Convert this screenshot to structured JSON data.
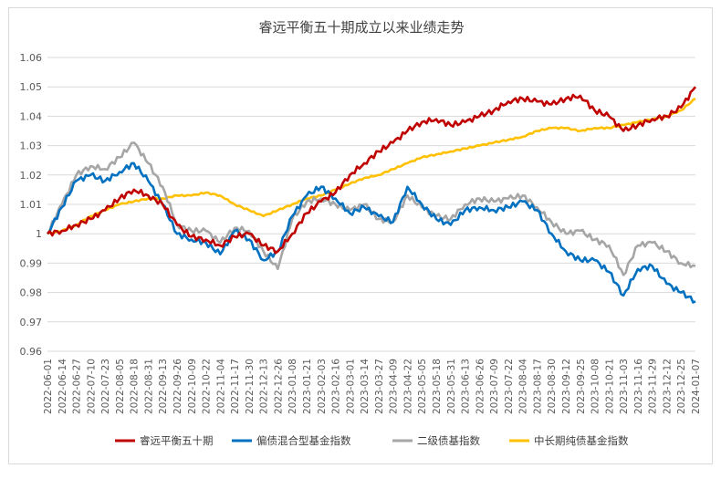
{
  "chart_data": {
    "type": "line",
    "title": "睿远平衡五十期成立以来业绩走势",
    "xlabel": "",
    "ylabel": "",
    "ylim": [
      0.96,
      1.06
    ],
    "yticks": [
      "0.96",
      "0.97",
      "0.98",
      "0.99",
      "1",
      "1.01",
      "1.02",
      "1.03",
      "1.04",
      "1.05",
      "1.06"
    ],
    "grid": true,
    "legend_position": "bottom",
    "x": [
      "2022-06-01",
      "2022-06-14",
      "2022-06-27",
      "2022-07-10",
      "2022-07-23",
      "2022-08-05",
      "2022-08-18",
      "2022-08-31",
      "2022-09-13",
      "2022-09-26",
      "2022-10-09",
      "2022-10-22",
      "2022-11-04",
      "2022-11-17",
      "2022-11-30",
      "2022-12-13",
      "2022-12-26",
      "2023-01-08",
      "2023-01-21",
      "2023-02-03",
      "2023-02-16",
      "2023-03-01",
      "2023-03-14",
      "2023-03-27",
      "2023-04-09",
      "2023-04-22",
      "2023-05-05",
      "2023-05-18",
      "2023-05-31",
      "2023-06-13",
      "2023-06-26",
      "2023-07-09",
      "2023-07-22",
      "2023-08-04",
      "2023-08-17",
      "2023-08-30",
      "2023-09-12",
      "2023-09-25",
      "2023-10-08",
      "2023-10-21",
      "2023-11-03",
      "2023-11-16",
      "2023-11-29",
      "2023-12-12",
      "2023-12-25",
      "2024-01-07"
    ],
    "series": [
      {
        "name": "睿远平衡五十期",
        "color": "#C00000",
        "values": [
          1.0,
          1.001,
          1.003,
          1.005,
          1.008,
          1.012,
          1.015,
          1.013,
          1.01,
          1.003,
          0.999,
          0.998,
          0.996,
          0.999,
          1.0,
          0.996,
          0.994,
          1.0,
          1.007,
          1.011,
          1.014,
          1.02,
          1.024,
          1.028,
          1.031,
          1.035,
          1.038,
          1.039,
          1.037,
          1.038,
          1.04,
          1.042,
          1.045,
          1.046,
          1.045,
          1.044,
          1.046,
          1.047,
          1.042,
          1.04,
          1.035,
          1.037,
          1.039,
          1.04,
          1.043,
          1.05
        ]
      },
      {
        "name": "偏债混合型基金指数",
        "color": "#0070C0",
        "values": [
          1.0,
          1.009,
          1.018,
          1.02,
          1.018,
          1.021,
          1.024,
          1.018,
          1.01,
          1.0,
          0.998,
          0.997,
          0.993,
          1.001,
          0.998,
          0.991,
          0.994,
          1.006,
          1.013,
          1.016,
          1.012,
          1.007,
          1.009,
          1.006,
          1.004,
          1.016,
          1.01,
          1.005,
          1.003,
          1.008,
          1.009,
          1.008,
          1.009,
          1.011,
          1.008,
          1.0,
          0.994,
          0.991,
          0.991,
          0.987,
          0.979,
          0.988,
          0.989,
          0.983,
          0.98,
          0.977
        ]
      },
      {
        "name": "二级债基指数",
        "color": "#A6A6A6",
        "values": [
          1.0,
          1.01,
          1.02,
          1.023,
          1.022,
          1.026,
          1.031,
          1.024,
          1.016,
          1.003,
          1.001,
          1.001,
          0.997,
          1.002,
          1.001,
          0.994,
          0.988,
          1.005,
          1.011,
          1.012,
          1.01,
          1.008,
          1.01,
          1.005,
          1.004,
          1.013,
          1.009,
          1.006,
          1.005,
          1.01,
          1.012,
          1.011,
          1.012,
          1.013,
          1.009,
          1.004,
          1.0,
          1.001,
          0.998,
          0.996,
          0.986,
          0.996,
          0.997,
          0.994,
          0.99,
          0.989
        ]
      },
      {
        "name": "中长期纯债基金指数",
        "color": "#FFC000",
        "values": [
          1.0,
          1.001,
          1.003,
          1.006,
          1.008,
          1.01,
          1.011,
          1.012,
          1.012,
          1.013,
          1.013,
          1.014,
          1.013,
          1.01,
          1.008,
          1.006,
          1.008,
          1.01,
          1.012,
          1.013,
          1.015,
          1.017,
          1.019,
          1.02,
          1.022,
          1.024,
          1.026,
          1.027,
          1.028,
          1.029,
          1.03,
          1.031,
          1.032,
          1.033,
          1.035,
          1.036,
          1.036,
          1.035,
          1.036,
          1.036,
          1.037,
          1.038,
          1.039,
          1.04,
          1.042,
          1.046
        ]
      }
    ]
  }
}
